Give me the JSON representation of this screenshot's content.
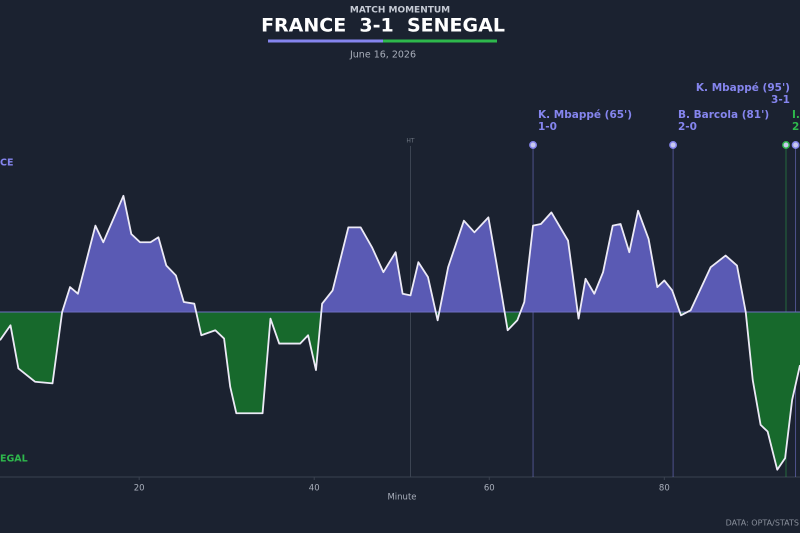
{
  "chart_data": {
    "type": "momentum",
    "supertitle": "MATCH MOMENTUM",
    "title": "FRANCE  3-1  SENEGAL",
    "subtitle": "June 16, 2026",
    "home_label": "CE",
    "away_label": "EGAL",
    "home_color": "#8585ee",
    "away_color": "#2eb84c",
    "home_fill": "#5a5ab4",
    "away_fill": "#17692c",
    "line_color": "#eceaf6",
    "x_label": "Minute",
    "source": "DATA: OPTA/STATS",
    "x": [
      4.1,
      5.3,
      6.2,
      8.1,
      10.1,
      11.2,
      12.1,
      13.0,
      15.0,
      15.9,
      18.2,
      19.1,
      20.1,
      21.3,
      22.2,
      23.1,
      24.2,
      25.1,
      26.3,
      27.1,
      28.7,
      29.7,
      30.4,
      31.1,
      34.1,
      35.0,
      36.0,
      38.4,
      39.3,
      40.2,
      40.9,
      42.1,
      43.9,
      45.3,
      46.6,
      47.9,
      49.3,
      50.1,
      51.0,
      51.9,
      53.0,
      54.1,
      55.3,
      57.1,
      58.3,
      59.9,
      60.8,
      62.1,
      63.2,
      64.0,
      65.0,
      65.9,
      67.1,
      69.0,
      70.2,
      71.0,
      72.0,
      73.0,
      74.1,
      75.0,
      76.0,
      77.0,
      78.2,
      79.2,
      80.0,
      80.9,
      81.9,
      83.0,
      85.3,
      87.0,
      88.3,
      89.3,
      90.1,
      91.0,
      91.8,
      92.9,
      93.8,
      94.6,
      95.5
    ],
    "values": [
      -17,
      -8,
      -34,
      -42,
      -43,
      0,
      15,
      11,
      52,
      42,
      70,
      47,
      42,
      42,
      45,
      28,
      22,
      6,
      5,
      -14,
      -11,
      -16,
      -45,
      -61,
      -61,
      -4,
      -19,
      -19,
      -14,
      -35,
      5,
      13,
      51,
      51,
      39,
      24,
      36,
      11,
      10,
      30,
      21,
      -5,
      27,
      55,
      48,
      57,
      30,
      -11,
      -5,
      6,
      52,
      53,
      60,
      43,
      -4,
      20,
      11,
      24,
      52,
      53,
      36,
      61,
      44,
      15,
      19,
      13,
      -2,
      1,
      27,
      34,
      28,
      0,
      -41,
      -68,
      -72,
      -95,
      -88,
      -53,
      -32
    ],
    "xlim": [
      4.1,
      95.5
    ],
    "ylim": [
      -100,
      100
    ],
    "xticks": [
      20,
      40,
      60,
      80
    ],
    "ht_minute": 51,
    "ht_label": "HT",
    "goals": [
      {
        "minute": 65,
        "team": "home",
        "label": "K. Mbappé (65')",
        "score": "1-0"
      },
      {
        "minute": 81,
        "team": "home",
        "label": "B. Barcola (81')",
        "score": "2-0"
      },
      {
        "minute": 93.9,
        "team": "away",
        "label": "I.",
        "score": "2"
      },
      {
        "minute": 95,
        "team": "home",
        "label": "K. Mbappé (95')",
        "score": "3-1"
      }
    ]
  }
}
